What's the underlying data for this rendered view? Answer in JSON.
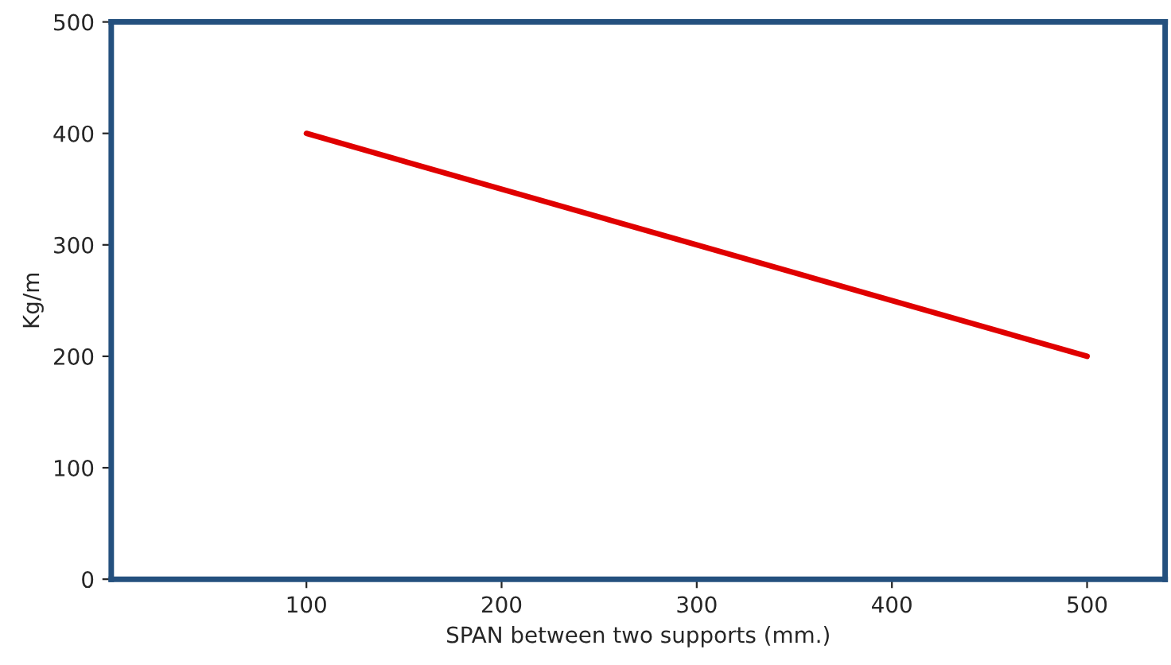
{
  "chart_data": {
    "type": "line",
    "xlabel": "SPAN between two supports (mm.)",
    "ylabel": "Kg/m",
    "series": [
      {
        "color": "#e00000",
        "x": [
          100,
          500
        ],
        "values": [
          400,
          200
        ]
      }
    ],
    "xlim": [
      0,
      540
    ],
    "xticks": [
      100,
      200,
      300,
      400,
      500
    ],
    "ylim": [
      0,
      500
    ],
    "yticks": [
      0,
      100,
      200,
      300,
      400,
      500
    ],
    "grid": false
  }
}
